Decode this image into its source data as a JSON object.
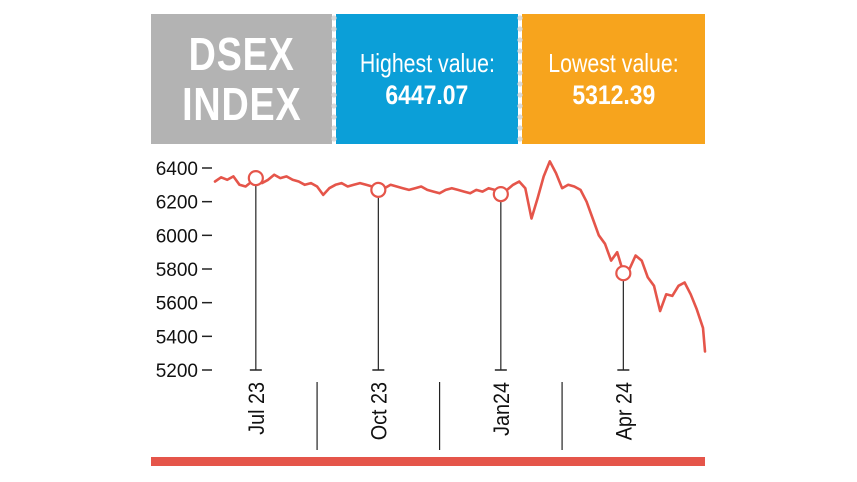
{
  "header": {
    "title_lines": [
      "DSEX",
      "INDEX"
    ],
    "highest_label": "Highest value:",
    "highest_value": "6447.07",
    "lowest_label": "Lowest value:",
    "lowest_value": "5312.39"
  },
  "colors": {
    "title_panel": "#b3b3b3",
    "highest_panel": "#0b9fd8",
    "lowest_panel": "#f7a41d",
    "line": "#e5554a",
    "axis": "#222222",
    "bottom_bar": "#e5554a"
  },
  "chart_data": {
    "type": "line",
    "title": "",
    "xlabel": "",
    "ylabel": "",
    "ylim": [
      5200,
      6400
    ],
    "yticks": [
      "6400",
      "6200",
      "6000",
      "5800",
      "5600",
      "5400",
      "5200"
    ],
    "ytick_values": [
      6400,
      6200,
      6000,
      5800,
      5600,
      5400,
      5200
    ],
    "xlim": [
      0,
      12
    ],
    "xticks": [
      {
        "label": "Jul 23",
        "x": 1.0
      },
      {
        "label": "Oct 23",
        "x": 4.0
      },
      {
        "label": "Jan24",
        "x": 7.0
      },
      {
        "label": "Apr 24",
        "x": 10.0
      }
    ],
    "month_dividers": [
      2.5,
      5.5,
      8.5
    ],
    "markers": [
      {
        "x": 1.0,
        "y": 6340
      },
      {
        "x": 4.0,
        "y": 6270
      },
      {
        "x": 7.0,
        "y": 6245
      },
      {
        "x": 10.0,
        "y": 5775
      }
    ],
    "series": [
      {
        "x": [
          0.0,
          0.15,
          0.3,
          0.45,
          0.6,
          0.75,
          0.9,
          1.0,
          1.15,
          1.3,
          1.45,
          1.6,
          1.75,
          1.9,
          2.05,
          2.2,
          2.35,
          2.5,
          2.65,
          2.8,
          2.95,
          3.1,
          3.25,
          3.4,
          3.55,
          3.7,
          3.85,
          4.0,
          4.15,
          4.3,
          4.45,
          4.6,
          4.75,
          4.9,
          5.05,
          5.2,
          5.35,
          5.5,
          5.65,
          5.8,
          5.95,
          6.1,
          6.25,
          6.4,
          6.55,
          6.7,
          6.85,
          7.0,
          7.15,
          7.3,
          7.45,
          7.6,
          7.75,
          7.9,
          8.05,
          8.2,
          8.35,
          8.5,
          8.65,
          8.8,
          8.95,
          9.1,
          9.25,
          9.4,
          9.55,
          9.7,
          9.85,
          10.0,
          10.15,
          10.3,
          10.45,
          10.6,
          10.75,
          10.9,
          11.05,
          11.2,
          11.35,
          11.5,
          11.65,
          11.8,
          11.95,
          12.0
        ],
        "y": [
          6320,
          6345,
          6330,
          6350,
          6300,
          6290,
          6320,
          6340,
          6310,
          6330,
          6360,
          6340,
          6350,
          6330,
          6320,
          6300,
          6310,
          6290,
          6240,
          6280,
          6300,
          6310,
          6290,
          6300,
          6310,
          6300,
          6290,
          6270,
          6280,
          6300,
          6290,
          6280,
          6270,
          6280,
          6290,
          6270,
          6260,
          6250,
          6270,
          6280,
          6270,
          6260,
          6250,
          6270,
          6260,
          6280,
          6270,
          6245,
          6270,
          6300,
          6320,
          6280,
          6100,
          6220,
          6350,
          6440,
          6370,
          6280,
          6300,
          6290,
          6270,
          6200,
          6100,
          6000,
          5950,
          5850,
          5900,
          5780,
          5800,
          5880,
          5850,
          5750,
          5700,
          5550,
          5650,
          5640,
          5700,
          5720,
          5650,
          5560,
          5450,
          5310
        ]
      }
    ]
  }
}
